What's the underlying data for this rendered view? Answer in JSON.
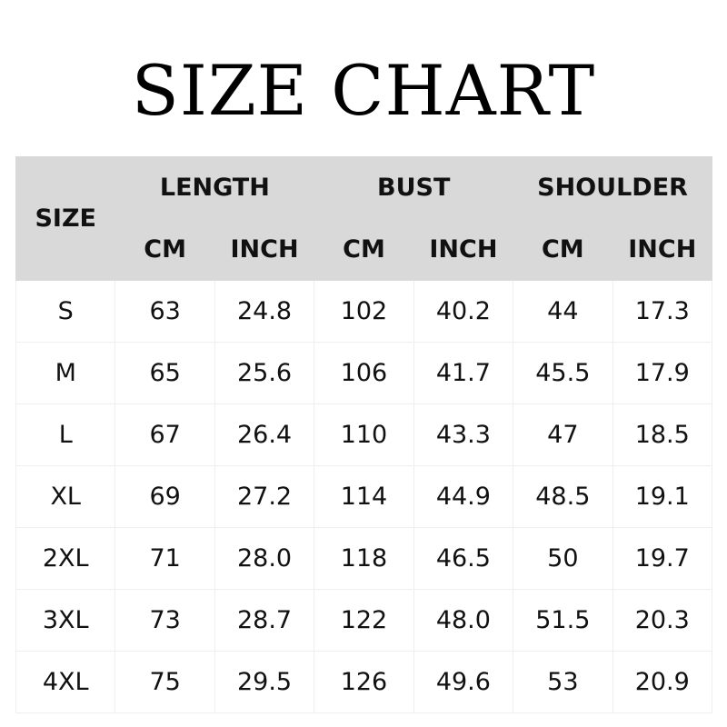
{
  "title": "SIZE CHART",
  "header": {
    "size": "SIZE",
    "groups": [
      "LENGTH",
      "BUST",
      "SHOULDER"
    ],
    "units": [
      "CM",
      "INCH",
      "CM",
      "INCH",
      "CM",
      "INCH"
    ]
  },
  "rows": [
    [
      "S",
      "63",
      "24.8",
      "102",
      "40.2",
      "44",
      "17.3"
    ],
    [
      "M",
      "65",
      "25.6",
      "106",
      "41.7",
      "45.5",
      "17.9"
    ],
    [
      "L",
      "67",
      "26.4",
      "110",
      "43.3",
      "47",
      "18.5"
    ],
    [
      "XL",
      "69",
      "27.2",
      "114",
      "44.9",
      "48.5",
      "19.1"
    ],
    [
      "2XL",
      "71",
      "28.0",
      "118",
      "46.5",
      "50",
      "19.7"
    ],
    [
      "3XL",
      "73",
      "28.7",
      "122",
      "48.0",
      "51.5",
      "20.3"
    ],
    [
      "4XL",
      "75",
      "29.5",
      "126",
      "49.6",
      "53",
      "20.9"
    ]
  ],
  "colors": {
    "header_bg": "#d9d9d9",
    "border": "#a9a9a9"
  }
}
